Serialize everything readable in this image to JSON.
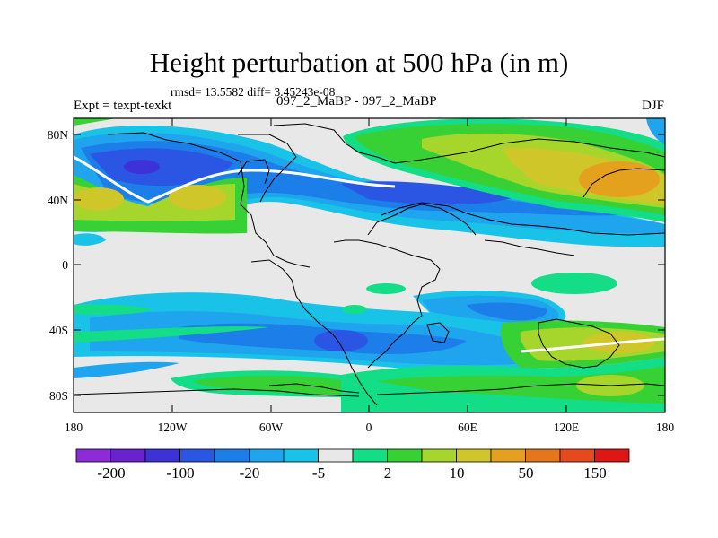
{
  "title": "Height perturbation at 500 hPa (in m)",
  "stats_text": "rmsd= 13.5582 diff= 3.45243e-08",
  "left_label": "Expt = texpt-texkt",
  "center_label": "097_2_MaBP - 097_2_MaBP",
  "right_label": "DJF",
  "y_ticks": [
    "80N",
    "40N",
    "0",
    "40S",
    "80S"
  ],
  "x_ticks": [
    "180",
    "120W",
    "60W",
    "0",
    "60E",
    "120E",
    "180"
  ],
  "colorbar": {
    "colors": [
      "#8d2bd9",
      "#6a22cf",
      "#3d32d8",
      "#2a56e3",
      "#1c7ee8",
      "#1fa4ee",
      "#19c3e8",
      "#e8e8e8",
      "#13dd86",
      "#37d035",
      "#a6d52c",
      "#cfc62a",
      "#e3a11d",
      "#e4761c",
      "#e8481d",
      "#de1616"
    ],
    "labels": [
      "-200",
      "-100",
      "-20",
      "-5",
      "2",
      "10",
      "50",
      "150"
    ]
  },
  "colors": {
    "background": "#e6e6e6",
    "coastline": "#000000"
  }
}
